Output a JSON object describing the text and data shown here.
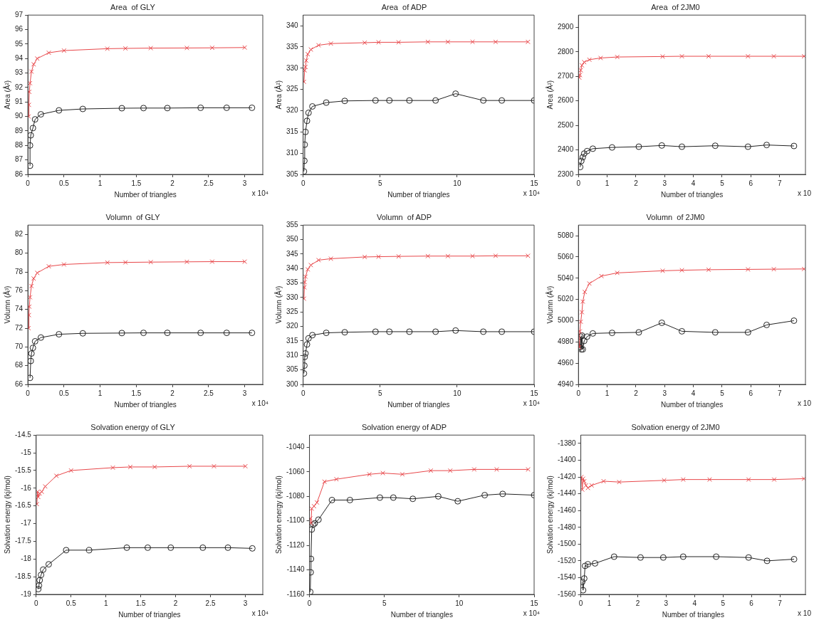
{
  "chart_data": [
    {
      "type": "line",
      "title": "Area  of GLY",
      "xlabel": "Number of triangles",
      "ylabel": "Area (Å²)",
      "annotations": [
        "x 10⁴"
      ],
      "xlim": [
        0,
        3.25
      ],
      "xticks": [
        0,
        0.5,
        1,
        1.5,
        2,
        2.5,
        3
      ],
      "ylim": [
        86,
        97
      ],
      "yticks": [
        86,
        87,
        88,
        89,
        90,
        91,
        92,
        93,
        94,
        95,
        96,
        97
      ],
      "grid": false,
      "legend": false,
      "series": [
        {
          "color": "#e8474a",
          "marker": "cross",
          "x": [
            0.01,
            0.015,
            0.02,
            0.03,
            0.05,
            0.08,
            0.13,
            0.29,
            0.5,
            1.1,
            1.35,
            1.7,
            2.2,
            2.55,
            3.0
          ],
          "values": [
            90.0,
            90.8,
            91.7,
            92.3,
            93.1,
            93.6,
            94.0,
            94.4,
            94.55,
            94.68,
            94.7,
            94.72,
            94.73,
            94.74,
            94.76
          ]
        },
        {
          "color": "#222222",
          "marker": "circle",
          "x": [
            0.03,
            0.03,
            0.04,
            0.07,
            0.1,
            0.18,
            0.43,
            0.76,
            1.3,
            1.6,
            1.93,
            2.39,
            2.75,
            3.1
          ],
          "values": [
            86.6,
            88.0,
            88.7,
            89.2,
            89.8,
            90.15,
            90.42,
            90.52,
            90.57,
            90.58,
            90.58,
            90.6,
            90.6,
            90.6
          ]
        }
      ]
    },
    {
      "type": "line",
      "title": "Area  of ADP",
      "xlabel": "Number of triangles",
      "ylabel": "Area (Å²)",
      "annotations": [
        "x 10⁴"
      ],
      "xlim": [
        0,
        15
      ],
      "xticks": [
        0,
        5,
        10,
        15
      ],
      "ylim": [
        305,
        342.5
      ],
      "yticks": [
        305,
        310,
        315,
        320,
        325,
        330,
        335,
        340
      ],
      "grid": false,
      "legend": false,
      "series": [
        {
          "color": "#e8474a",
          "marker": "cross",
          "x": [
            0.05,
            0.1,
            0.15,
            0.2,
            0.3,
            0.5,
            1.0,
            1.8,
            4.0,
            4.9,
            6.2,
            8.1,
            9.4,
            11,
            12.5,
            14.6
          ],
          "values": [
            326.8,
            329.5,
            330.3,
            331.8,
            333.3,
            334.4,
            335.4,
            335.8,
            336.0,
            336.1,
            336.1,
            336.2,
            336.2,
            336.2,
            336.2,
            336.2
          ]
        },
        {
          "color": "#222222",
          "marker": "circle",
          "x": [
            0.05,
            0.08,
            0.1,
            0.15,
            0.25,
            0.35,
            0.6,
            1.5,
            2.7,
            4.7,
            5.6,
            6.9,
            8.6,
            9.9,
            11.7,
            12.9,
            15
          ],
          "values": [
            305.7,
            308.2,
            312,
            315,
            317.6,
            319.5,
            321,
            321.9,
            322.3,
            322.4,
            322.4,
            322.4,
            322.4,
            324,
            322.4,
            322.4,
            322.4
          ]
        }
      ]
    },
    {
      "type": "line",
      "title": "Area  of 2JM0",
      "xlabel": "Number of triangles",
      "ylabel": "Area (Å²)",
      "annotations": [
        "x 10"
      ],
      "xlim": [
        0,
        7.9
      ],
      "xticks": [
        0,
        1,
        2,
        3,
        4,
        5,
        6,
        7
      ],
      "ylim": [
        2300,
        2950
      ],
      "yticks": [
        2300,
        2400,
        2500,
        2600,
        2700,
        2800,
        2900
      ],
      "grid": false,
      "legend": false,
      "series": [
        {
          "color": "#e8474a",
          "marker": "cross",
          "x": [
            0.03,
            0.05,
            0.08,
            0.12,
            0.2,
            0.38,
            0.77,
            1.35,
            2.93,
            3.6,
            4.53,
            5.9,
            6.8,
            7.85
          ],
          "values": [
            2695,
            2705,
            2725,
            2745,
            2758,
            2768,
            2775,
            2779,
            2781,
            2782,
            2782,
            2782,
            2782,
            2782
          ]
        },
        {
          "color": "#222222",
          "marker": "circle",
          "x": [
            0.06,
            0.1,
            0.15,
            0.2,
            0.3,
            0.5,
            1.17,
            2.1,
            2.9,
            3.6,
            4.76,
            5.9,
            6.55,
            7.5
          ],
          "values": [
            2330,
            2355,
            2370,
            2385,
            2395,
            2405,
            2410,
            2413,
            2418,
            2413,
            2417,
            2413,
            2420,
            2416
          ]
        }
      ]
    },
    {
      "type": "line",
      "title": "Volumn  of GLY",
      "xlabel": "Number of triangles",
      "ylabel": "Volumn (Å³)",
      "annotations": [
        "x 10⁴"
      ],
      "xlim": [
        0,
        3.25
      ],
      "xticks": [
        0,
        0.5,
        1,
        1.5,
        2,
        2.5,
        3
      ],
      "ylim": [
        66,
        83
      ],
      "yticks": [
        66,
        68,
        70,
        72,
        74,
        76,
        78,
        80,
        82
      ],
      "grid": false,
      "legend": false,
      "series": [
        {
          "color": "#e8474a",
          "marker": "cross",
          "x": [
            0.01,
            0.015,
            0.02,
            0.03,
            0.05,
            0.08,
            0.13,
            0.29,
            0.5,
            1.1,
            1.35,
            1.7,
            2.2,
            2.55,
            3.0
          ],
          "values": [
            72.0,
            73.4,
            74.3,
            75.3,
            76.5,
            77.3,
            77.9,
            78.6,
            78.8,
            79.0,
            79.02,
            79.05,
            79.08,
            79.1,
            79.1
          ]
        },
        {
          "color": "#222222",
          "marker": "circle",
          "x": [
            0.03,
            0.04,
            0.05,
            0.07,
            0.1,
            0.18,
            0.43,
            0.76,
            1.3,
            1.6,
            1.93,
            2.39,
            2.75,
            3.1
          ],
          "values": [
            66.7,
            68.5,
            69.3,
            69.9,
            70.6,
            71.0,
            71.35,
            71.45,
            71.48,
            71.5,
            71.5,
            71.5,
            71.5,
            71.5
          ]
        }
      ]
    },
    {
      "type": "line",
      "title": "Volumn  of ADP",
      "xlabel": "Number of triangles",
      "ylabel": "Volumn (Å³)",
      "annotations": [
        "x 10⁴"
      ],
      "xlim": [
        0,
        15
      ],
      "xticks": [
        0,
        5,
        10,
        15
      ],
      "ylim": [
        300,
        355
      ],
      "yticks": [
        300,
        305,
        310,
        315,
        320,
        325,
        330,
        335,
        340,
        345,
        350,
        355
      ],
      "grid": false,
      "legend": false,
      "series": [
        {
          "color": "#e8474a",
          "marker": "cross",
          "x": [
            0.05,
            0.08,
            0.1,
            0.15,
            0.3,
            0.5,
            1.0,
            1.8,
            4.0,
            4.9,
            6.2,
            8.1,
            9.4,
            11,
            12.5,
            14.6
          ],
          "values": [
            329.6,
            333.5,
            335.3,
            337.2,
            339.7,
            341.2,
            342.9,
            343.4,
            344.0,
            344.1,
            344.2,
            344.3,
            344.3,
            344.3,
            344.4,
            344.4
          ]
        },
        {
          "color": "#222222",
          "marker": "circle",
          "x": [
            0.05,
            0.08,
            0.1,
            0.15,
            0.25,
            0.35,
            0.6,
            1.5,
            2.7,
            4.7,
            5.6,
            6.9,
            8.6,
            9.9,
            11.7,
            12.9,
            15
          ],
          "values": [
            303.8,
            306.5,
            309.5,
            310.7,
            313.8,
            315.9,
            317,
            317.8,
            318,
            318.2,
            318.2,
            318.2,
            318.2,
            318.6,
            318.2,
            318.2,
            318.2
          ]
        }
      ]
    },
    {
      "type": "line",
      "title": "Volumn  of 2JM0",
      "xlabel": "Number of triangles",
      "ylabel": "Volumn (Å³)",
      "annotations": [
        "x 10"
      ],
      "xlim": [
        0,
        7.9
      ],
      "xticks": [
        0,
        1,
        2,
        3,
        4,
        5,
        6,
        7
      ],
      "ylim": [
        4940,
        5090
      ],
      "yticks": [
        4940,
        4960,
        4980,
        5000,
        5020,
        5040,
        5060,
        5080
      ],
      "grid": false,
      "legend": false,
      "series": [
        {
          "color": "#e8474a",
          "marker": "cross",
          "x": [
            0.03,
            0.05,
            0.08,
            0.12,
            0.15,
            0.22,
            0.38,
            0.8,
            1.35,
            2.93,
            3.6,
            4.53,
            5.9,
            6.8,
            7.85
          ],
          "values": [
            4975,
            4990,
            4999,
            5008,
            5018,
            5027,
            5035,
            5042,
            5045,
            5047,
            5047.5,
            5048,
            5048.3,
            5048.5,
            5048.7
          ]
        },
        {
          "color": "#222222",
          "marker": "circle",
          "x": [
            0.05,
            0.08,
            0.1,
            0.12,
            0.15,
            0.2,
            0.3,
            0.5,
            1.17,
            2.1,
            2.9,
            3.6,
            4.76,
            5.9,
            6.55,
            7.5
          ],
          "values": [
            4975,
            4985,
            4973,
            4986,
            4973,
            4981,
            4985,
            4988,
            4988.5,
            4989,
            4998,
            4990,
            4989,
            4989,
            4996,
            5000
          ]
        }
      ]
    },
    {
      "type": "line",
      "title": "Solvation energy of GLY",
      "xlabel": "Number of triangles",
      "ylabel": "Solvation energy (kj/mol)",
      "annotations": [
        "x 10⁴"
      ],
      "xlim": [
        0,
        3.25
      ],
      "xticks": [
        0,
        0.5,
        1,
        1.5,
        2,
        2.5,
        3
      ],
      "ylim": [
        -19,
        -14.5
      ],
      "yticks": [
        -19,
        -18.5,
        -18,
        -17.5,
        -17,
        -16.5,
        -16,
        -15.5,
        -15,
        -14.5
      ],
      "grid": false,
      "legend": false,
      "series": [
        {
          "color": "#e8474a",
          "marker": "cross",
          "x": [
            0.01,
            0.02,
            0.03,
            0.05,
            0.08,
            0.13,
            0.29,
            0.5,
            1.1,
            1.35,
            1.7,
            2.2,
            2.55,
            3.0
          ],
          "values": [
            -16.45,
            -16.1,
            -16.25,
            -16.15,
            -16.1,
            -15.95,
            -15.65,
            -15.5,
            -15.42,
            -15.4,
            -15.4,
            -15.38,
            -15.38,
            -15.38
          ]
        },
        {
          "color": "#222222",
          "marker": "circle",
          "x": [
            0.03,
            0.04,
            0.05,
            0.07,
            0.1,
            0.18,
            0.43,
            0.76,
            1.3,
            1.6,
            1.93,
            2.39,
            2.75,
            3.1
          ],
          "values": [
            -18.85,
            -18.75,
            -18.6,
            -18.45,
            -18.3,
            -18.15,
            -17.75,
            -17.75,
            -17.68,
            -17.68,
            -17.68,
            -17.68,
            -17.68,
            -17.7
          ]
        }
      ]
    },
    {
      "type": "line",
      "title": "Solvation energy of ADP",
      "xlabel": "Number of triangles",
      "ylabel": "Solvation energy (kj/mol)",
      "annotations": [
        "x 10⁴"
      ],
      "xlim": [
        0,
        15
      ],
      "xticks": [
        0,
        5,
        10,
        15
      ],
      "ylim": [
        -1160,
        -1030
      ],
      "yticks": [
        -1160,
        -1140,
        -1120,
        -1100,
        -1080,
        -1060,
        -1040
      ],
      "grid": false,
      "legend": false,
      "series": [
        {
          "color": "#e8474a",
          "marker": "cross",
          "x": [
            0.05,
            0.1,
            0.15,
            0.3,
            0.5,
            1.0,
            1.8,
            4.0,
            4.9,
            6.2,
            8.1,
            9.4,
            11,
            12.5,
            14.6
          ],
          "values": [
            -1098,
            -1102,
            -1090,
            -1088,
            -1085,
            -1068,
            -1066,
            -1062,
            -1061,
            -1062,
            -1059,
            -1059,
            -1058,
            -1058,
            -1058
          ]
        },
        {
          "color": "#222222",
          "marker": "circle",
          "x": [
            0.05,
            0.08,
            0.1,
            0.15,
            0.25,
            0.35,
            0.6,
            1.5,
            2.7,
            4.7,
            5.6,
            6.9,
            8.6,
            9.9,
            11.7,
            12.9,
            15
          ],
          "values": [
            -1158,
            -1142,
            -1131,
            -1107,
            -1103,
            -1102,
            -1099,
            -1083,
            -1083,
            -1081,
            -1081,
            -1082,
            -1080,
            -1084,
            -1079,
            -1078,
            -1079
          ]
        }
      ]
    },
    {
      "type": "line",
      "title": "Solvation energy of 2JM0",
      "xlabel": "Number of triangles",
      "ylabel": "Solvation energy (kj/mol)",
      "annotations": [
        "x 10"
      ],
      "xlim": [
        0,
        7.9
      ],
      "xticks": [
        0,
        1,
        2,
        3,
        4,
        5,
        6,
        7
      ],
      "ylim": [
        -1560,
        -1370
      ],
      "yticks": [
        -1560,
        -1540,
        -1520,
        -1500,
        -1480,
        -1460,
        -1440,
        -1420,
        -1400,
        -1380
      ],
      "grid": false,
      "legend": false,
      "series": [
        {
          "color": "#e8474a",
          "marker": "cross",
          "x": [
            0.02,
            0.05,
            0.08,
            0.12,
            0.18,
            0.25,
            0.38,
            0.8,
            1.35,
            2.93,
            3.6,
            4.53,
            5.9,
            6.8,
            7.85
          ],
          "values": [
            -1420,
            -1435,
            -1422,
            -1425,
            -1430,
            -1433,
            -1430,
            -1425,
            -1426,
            -1424,
            -1423,
            -1423,
            -1423,
            -1423,
            -1422
          ]
        },
        {
          "color": "#222222",
          "marker": "circle",
          "x": [
            0.05,
            0.08,
            0.12,
            0.15,
            0.25,
            0.5,
            1.17,
            2.1,
            2.9,
            3.6,
            4.76,
            5.9,
            6.55,
            7.5
          ],
          "values": [
            -1545,
            -1555,
            -1541,
            -1526,
            -1524,
            -1523,
            -1515,
            -1516,
            -1516,
            -1515,
            -1515,
            -1516,
            -1520,
            -1518
          ]
        }
      ]
    }
  ]
}
